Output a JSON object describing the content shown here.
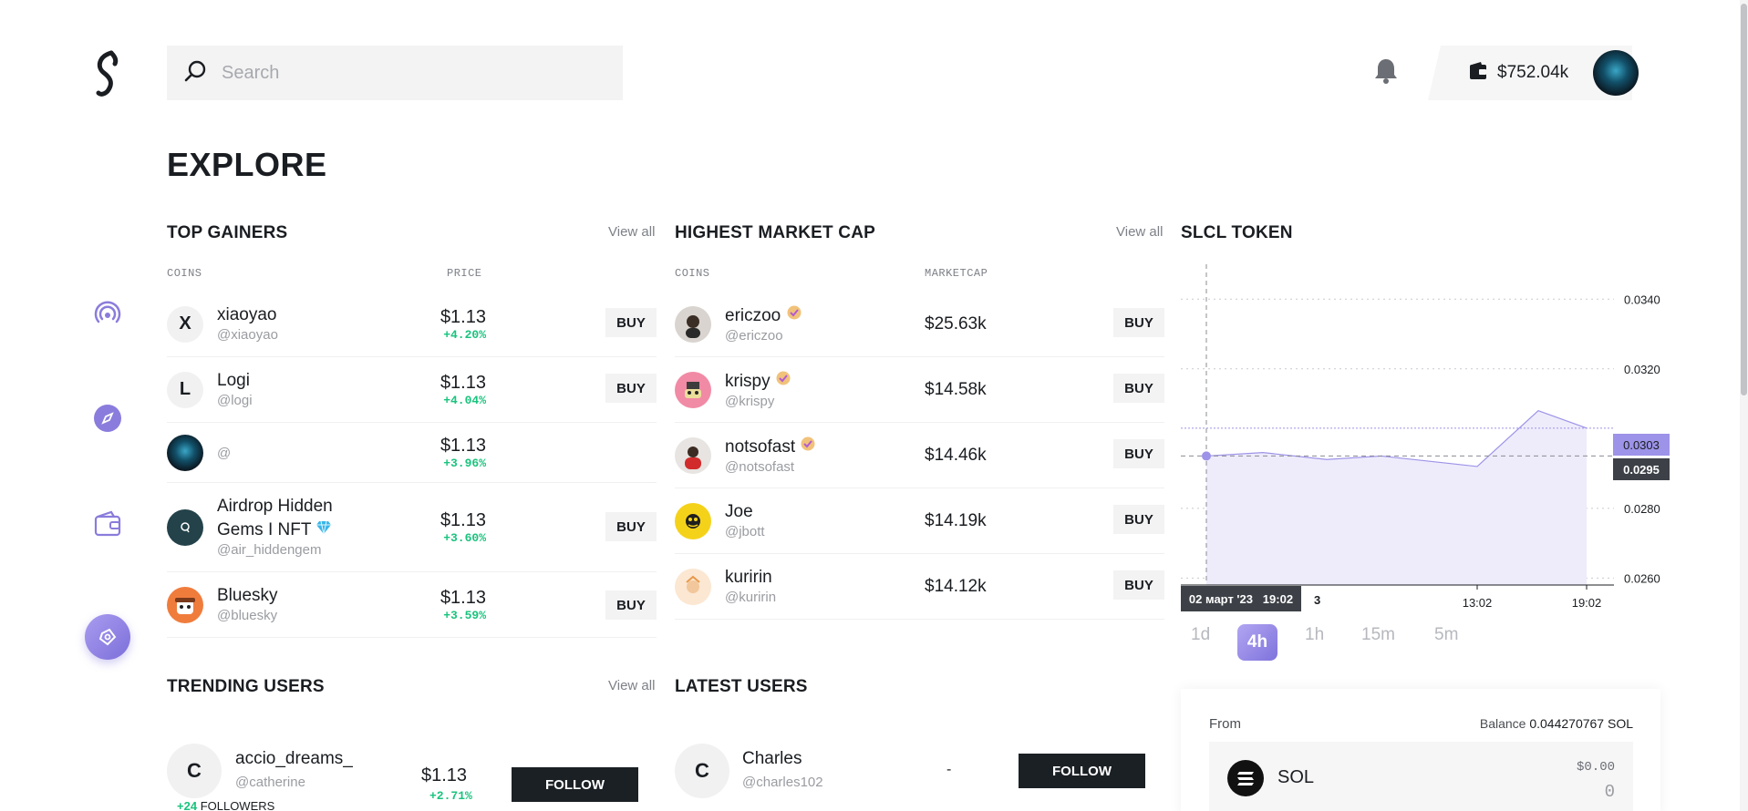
{
  "header": {
    "search_placeholder": "Search",
    "wallet_balance": "$752.04k"
  },
  "page": {
    "title": "EXPLORE"
  },
  "sidebar": {
    "items": [
      {
        "icon": "broadcast-icon"
      },
      {
        "icon": "compass-icon"
      },
      {
        "icon": "wallet-icon"
      },
      {
        "icon": "token-icon",
        "active": true
      }
    ]
  },
  "top_gainers": {
    "title": "TOP GAINERS",
    "view_all": "View all",
    "col_coins": "COINS",
    "col_price": "PRICE",
    "rows": [
      {
        "initial": "X",
        "name": "xiaoyao",
        "handle": "@xiaoyao",
        "price": "$1.13",
        "change": "+4.20%",
        "buy": "BUY"
      },
      {
        "initial": "L",
        "name": "Logi",
        "handle": "@logi",
        "price": "$1.13",
        "change": "+4.04%",
        "buy": "BUY"
      },
      {
        "initial": "",
        "name": "",
        "handle": "@",
        "price": "$1.13",
        "change": "+3.96%",
        "buy": ""
      },
      {
        "initial": "",
        "name": "Airdrop Hidden Gems I NFT",
        "name_line1": "Airdrop Hidden",
        "name_line2": "Gems I NFT",
        "handle": "@air_hiddengem",
        "price": "$1.13",
        "change": "+3.60%",
        "buy": "BUY"
      },
      {
        "initial": "",
        "name": "Bluesky",
        "handle": "@bluesky",
        "price": "$1.13",
        "change": "+3.59%",
        "buy": "BUY"
      }
    ]
  },
  "highest_market_cap": {
    "title": "HIGHEST MARKET CAP",
    "view_all": "View all",
    "col_coins": "COINS",
    "col_marketcap": "MARKETCAP",
    "rows": [
      {
        "name": "ericzoo",
        "handle": "@ericzoo",
        "marketcap": "$25.63k",
        "buy": "BUY"
      },
      {
        "name": "krispy",
        "handle": "@krispy",
        "marketcap": "$14.58k",
        "buy": "BUY"
      },
      {
        "name": "notsofast",
        "handle": "@notsofast",
        "marketcap": "$14.46k",
        "buy": "BUY"
      },
      {
        "name": "Joe",
        "handle": "@jbott",
        "marketcap": "$14.19k",
        "buy": "BUY"
      },
      {
        "name": "kuririn",
        "handle": "@kuririn",
        "marketcap": "$14.12k",
        "buy": "BUY"
      }
    ]
  },
  "slcl_token": {
    "title": "SLCL TOKEN",
    "timeframes": [
      "1d",
      "4h",
      "1h",
      "15m",
      "5m"
    ],
    "active_timeframe": "4h",
    "crosshair_label": "02 март '23   19:02",
    "x_tick_partial": "3",
    "current_price_label": "0.0303",
    "crosshair_price_label": "0.0295"
  },
  "chart_data": {
    "type": "area",
    "x": [
      "02 март '23 19:02",
      "",
      "",
      "",
      "",
      "13:02",
      "",
      "19:02"
    ],
    "series": [
      {
        "values": [
          0.0295,
          0.0296,
          0.0294,
          0.0295,
          0.0293,
          0.0292,
          0.0308,
          0.0303
        ]
      }
    ],
    "yticks": [
      0.026,
      0.028,
      0.032,
      0.034
    ],
    "ylim": [
      0.0258,
      0.035
    ],
    "xticks": [
      "13:02",
      "19:02"
    ],
    "grid": true
  },
  "trending_users": {
    "title": "TRENDING USERS",
    "view_all": "View all",
    "rows": [
      {
        "initial": "C",
        "name": "accio_dreams_",
        "handle": "@catherine",
        "price": "$1.13",
        "change": "+2.71%",
        "followers_delta": "+24",
        "followers_label": "FOLLOWERS",
        "follow": "FOLLOW"
      }
    ]
  },
  "latest_users": {
    "title": "LATEST USERS",
    "rows": [
      {
        "initial": "C",
        "name": "Charles",
        "handle": "@charles102",
        "value": "-",
        "follow": "FOLLOW"
      }
    ]
  },
  "swap": {
    "from_label": "From",
    "balance_label": "Balance",
    "balance_value": "0.044270767 SOL",
    "token": "SOL",
    "usd_value": "$0.00",
    "amount": "0"
  },
  "colors": {
    "accent": "#7f72dc",
    "positive": "#19c37d",
    "dark": "#1b2024"
  }
}
